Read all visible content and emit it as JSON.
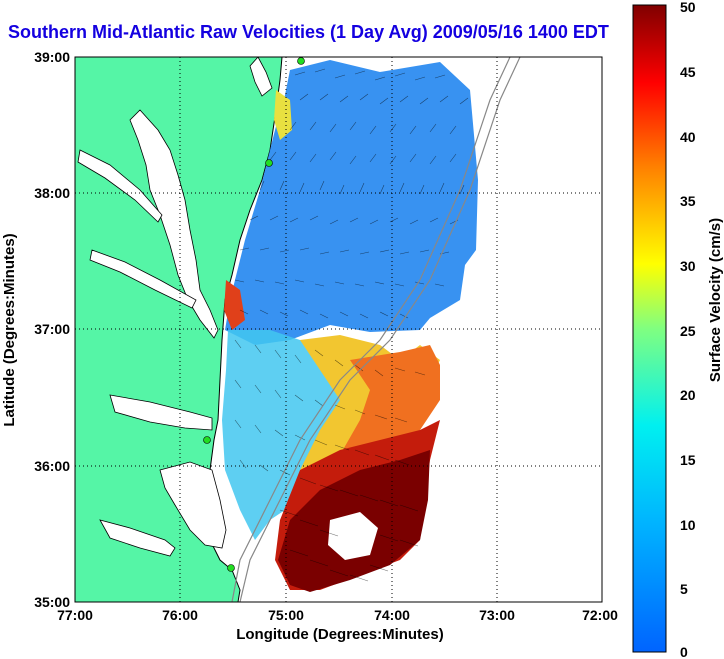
{
  "title": "Southern Mid-Atlantic Raw Velocities (1 Day Avg) 2009/05/16 1400 EDT",
  "map": {
    "x_axis_label": "Longitude (Degrees:Minutes)",
    "y_axis_label": "Latitude (Degrees:Minutes)",
    "x_ticks": [
      "77:00",
      "76:00",
      "75:00",
      "74:00",
      "73:00",
      "72:00"
    ],
    "y_ticks": [
      "39:00",
      "38:00",
      "37:00",
      "36:00",
      "35:00"
    ],
    "lon_range": [
      -77,
      -72
    ],
    "lat_range": [
      35,
      39
    ],
    "grid": true,
    "colors": {
      "land": "#55f5a6",
      "bay": "#ffffff",
      "coast_line": "#000000",
      "station": "#22dd22"
    }
  },
  "colorbar": {
    "label": "Surface Velocity (cm/s)",
    "ticks": [
      "50",
      "45",
      "40",
      "35",
      "30",
      "25",
      "20",
      "15",
      "10",
      "5",
      "0"
    ],
    "range": [
      0,
      50
    ],
    "colormap": "jet"
  },
  "stations": [
    "station-1",
    "station-2",
    "station-3",
    "station-4"
  ]
}
